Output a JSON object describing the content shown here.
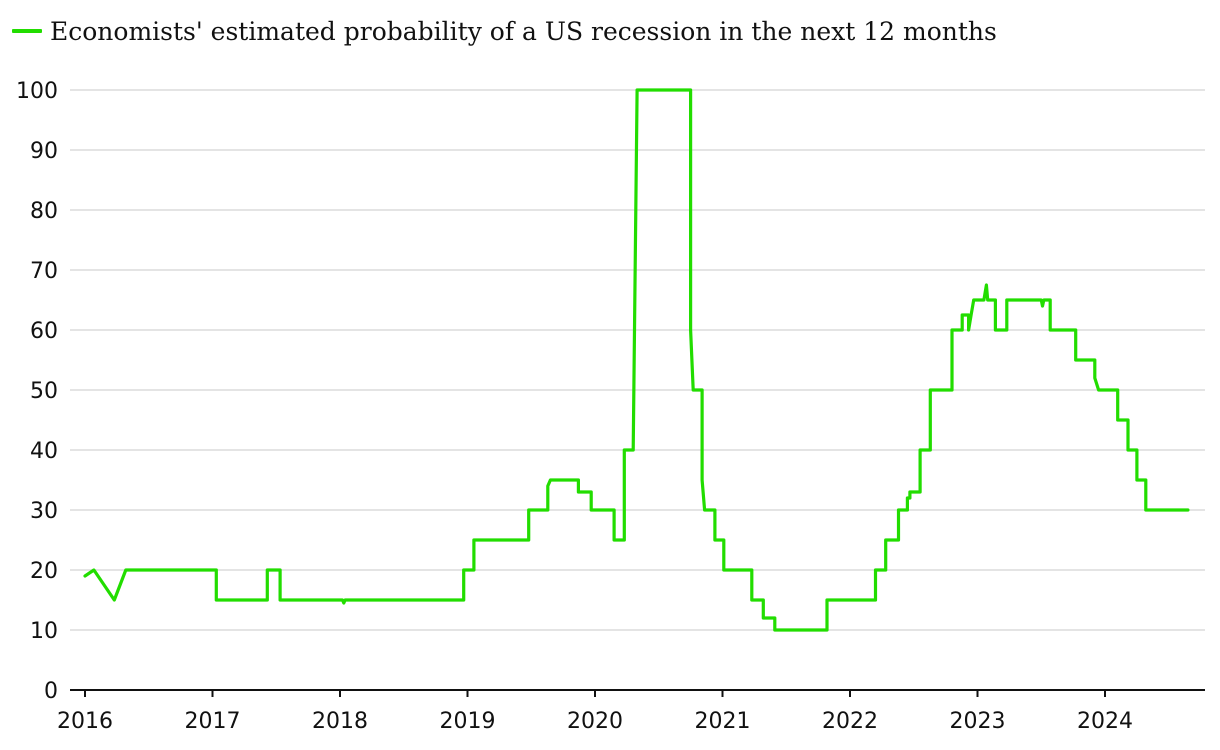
{
  "colors": {
    "series": "#22dd00",
    "grid": "#dcdcdc",
    "axis": "#111111"
  },
  "chart_data": {
    "type": "line",
    "title": "",
    "xlabel": "",
    "ylabel": "",
    "legend": {
      "placement": "top-left"
    },
    "grid": {
      "horizontal": true,
      "vertical": false
    },
    "xlim": [
      2016,
      2024.75
    ],
    "ylim": [
      0,
      100
    ],
    "x_ticks": [
      2016,
      2017,
      2018,
      2019,
      2020,
      2021,
      2022,
      2023,
      2024
    ],
    "x_tick_labels": [
      "2016",
      "2017",
      "2018",
      "2019",
      "2020",
      "2021",
      "2022",
      "2023",
      "2024"
    ],
    "y_ticks": [
      0,
      10,
      20,
      30,
      40,
      50,
      60,
      70,
      80,
      90,
      100
    ],
    "y_tick_labels": [
      "0",
      "10",
      "20",
      "30",
      "40",
      "50",
      "60",
      "70",
      "80",
      "90",
      "100"
    ],
    "series": [
      {
        "name": "Economists' estimated probability of a US recession in the next 12 months",
        "points": [
          [
            2016.0,
            19
          ],
          [
            2016.07,
            20
          ],
          [
            2016.15,
            17.5
          ],
          [
            2016.23,
            15
          ],
          [
            2016.32,
            20
          ],
          [
            2017.03,
            20
          ],
          [
            2017.03,
            15
          ],
          [
            2017.43,
            15
          ],
          [
            2017.43,
            20
          ],
          [
            2017.53,
            20
          ],
          [
            2017.53,
            15
          ],
          [
            2018.02,
            15
          ],
          [
            2018.03,
            14.5
          ],
          [
            2018.04,
            15
          ],
          [
            2018.97,
            15
          ],
          [
            2018.97,
            20
          ],
          [
            2019.05,
            20
          ],
          [
            2019.05,
            25
          ],
          [
            2019.48,
            25
          ],
          [
            2019.48,
            30
          ],
          [
            2019.63,
            30
          ],
          [
            2019.63,
            34
          ],
          [
            2019.65,
            35
          ],
          [
            2019.87,
            35
          ],
          [
            2019.87,
            33
          ],
          [
            2019.97,
            33
          ],
          [
            2019.97,
            30
          ],
          [
            2020.15,
            30
          ],
          [
            2020.15,
            25
          ],
          [
            2020.23,
            25
          ],
          [
            2020.23,
            40
          ],
          [
            2020.3,
            40
          ],
          [
            2020.33,
            100
          ],
          [
            2020.75,
            100
          ],
          [
            2020.75,
            60
          ],
          [
            2020.77,
            50
          ],
          [
            2020.84,
            50
          ],
          [
            2020.84,
            35
          ],
          [
            2020.86,
            30
          ],
          [
            2020.94,
            30
          ],
          [
            2020.94,
            25
          ],
          [
            2021.01,
            25
          ],
          [
            2021.01,
            20
          ],
          [
            2021.23,
            20
          ],
          [
            2021.23,
            15
          ],
          [
            2021.32,
            15
          ],
          [
            2021.32,
            12
          ],
          [
            2021.41,
            12
          ],
          [
            2021.41,
            10
          ],
          [
            2021.82,
            10
          ],
          [
            2021.82,
            15
          ],
          [
            2022.2,
            15
          ],
          [
            2022.2,
            20
          ],
          [
            2022.28,
            20
          ],
          [
            2022.28,
            25
          ],
          [
            2022.38,
            25
          ],
          [
            2022.38,
            30
          ],
          [
            2022.45,
            30
          ],
          [
            2022.45,
            32
          ],
          [
            2022.47,
            32
          ],
          [
            2022.47,
            33
          ],
          [
            2022.55,
            33
          ],
          [
            2022.55,
            40
          ],
          [
            2022.63,
            40
          ],
          [
            2022.63,
            50
          ],
          [
            2022.8,
            50
          ],
          [
            2022.8,
            60
          ],
          [
            2022.88,
            60
          ],
          [
            2022.88,
            62.5
          ],
          [
            2022.93,
            62.5
          ],
          [
            2022.93,
            60
          ],
          [
            2022.95,
            62.5
          ],
          [
            2022.97,
            65
          ],
          [
            2023.05,
            65
          ],
          [
            2023.07,
            67.5
          ],
          [
            2023.08,
            65
          ],
          [
            2023.14,
            65
          ],
          [
            2023.14,
            60
          ],
          [
            2023.23,
            60
          ],
          [
            2023.23,
            65
          ],
          [
            2023.5,
            65
          ],
          [
            2023.51,
            64
          ],
          [
            2023.52,
            65
          ],
          [
            2023.57,
            65
          ],
          [
            2023.57,
            60
          ],
          [
            2023.77,
            60
          ],
          [
            2023.77,
            55
          ],
          [
            2023.92,
            55
          ],
          [
            2023.92,
            52
          ],
          [
            2023.95,
            50
          ],
          [
            2024.1,
            50
          ],
          [
            2024.1,
            45
          ],
          [
            2024.18,
            45
          ],
          [
            2024.18,
            40
          ],
          [
            2024.25,
            40
          ],
          [
            2024.25,
            35
          ],
          [
            2024.32,
            35
          ],
          [
            2024.32,
            30
          ],
          [
            2024.65,
            30
          ]
        ]
      }
    ]
  }
}
